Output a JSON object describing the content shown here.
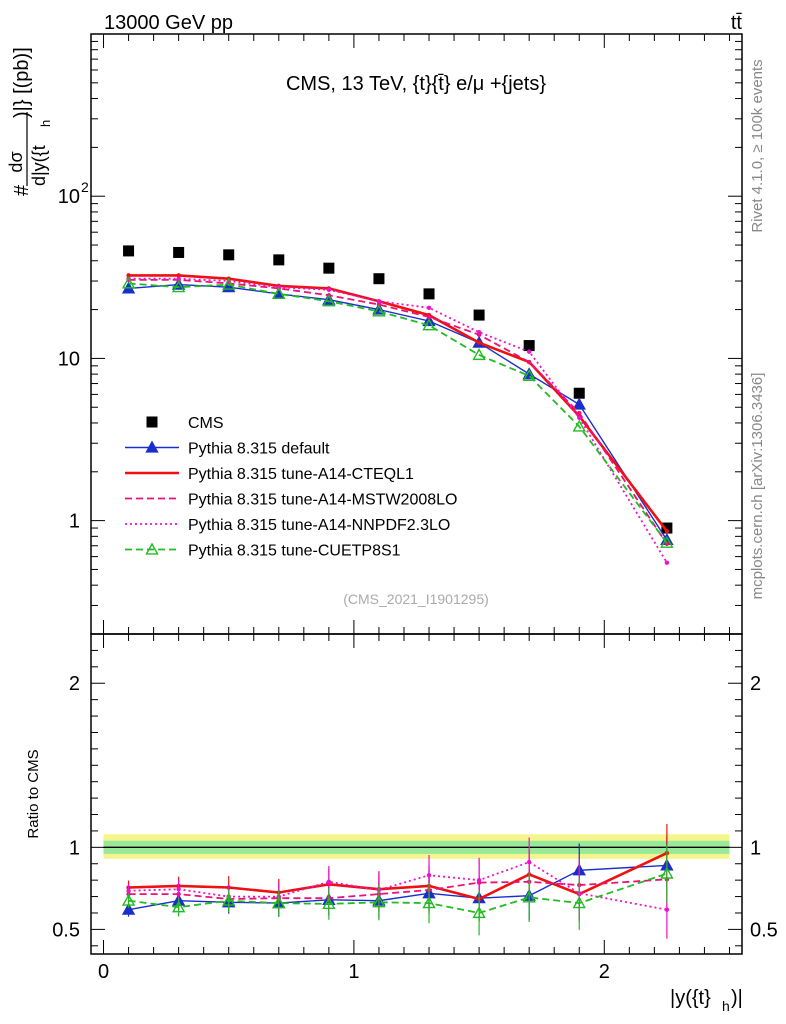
{
  "header": {
    "energy_label": "13000 GeV pp",
    "process_label": "tt̄"
  },
  "side_labels": {
    "rivet": "Rivet 4.1.0, ≥ 100k events",
    "mcplots": "mcplots.cern.ch [arXiv:1306.3436]"
  },
  "chart_data": [
    {
      "type": "line",
      "panel": "main",
      "title": "CMS, 13 TeV, {t}{t̄} e/μ +{jets}",
      "analysis_id": "(CMS_2021_I1901295)",
      "ylabel": "#dσ/d|y({t_h})|} [(pb)]",
      "ylabel_parts": {
        "hash": "#",
        "num": "dσ",
        "den": "d|y({t",
        "sub": "h",
        "tail": ")|} [(pb)]"
      },
      "yscale": "log",
      "ylim": [
        0.2,
        1000
      ],
      "xlim": [
        -0.05,
        2.55
      ],
      "ytick_labels": [
        {
          "value": 100,
          "base": "10",
          "exp": "2"
        },
        {
          "value": 10,
          "text": "10"
        },
        {
          "value": 1,
          "text": "1"
        }
      ],
      "legend_position": "lower-left",
      "x": [
        0.1,
        0.3,
        0.5,
        0.7,
        0.9,
        1.1,
        1.3,
        1.5,
        1.7,
        1.9,
        2.25
      ],
      "series": [
        {
          "name": "CMS",
          "color": "#000000",
          "marker": "square",
          "values": [
            46,
            45,
            43.5,
            40.5,
            36,
            31,
            25,
            18.5,
            12,
            6.1,
            0.9
          ]
        },
        {
          "name": "Pythia 8.315 default",
          "color": "#1a2ecc",
          "marker": "triangle",
          "line": "solid",
          "values": [
            27,
            28.5,
            27.5,
            25,
            23,
            20,
            17,
            12.5,
            8,
            5.2,
            0.76
          ]
        },
        {
          "name": "Pythia 8.315 tune-A14-CTEQL1",
          "color": "#ee1111",
          "marker": "none",
          "line": "solid",
          "values": [
            32.5,
            32.5,
            31,
            28,
            27,
            22.5,
            18.5,
            12.5,
            9.5,
            4.4,
            0.86
          ]
        },
        {
          "name": "Pythia 8.315 tune-A14-MSTW2008LO",
          "color": "#ee1177",
          "marker": "none",
          "line": "dashed",
          "values": [
            30.5,
            30.5,
            29,
            27,
            24.5,
            21.5,
            18,
            14,
            9.5,
            4.6,
            0.72
          ]
        },
        {
          "name": "Pythia 8.315 tune-A14-NNPDF2.3LO",
          "color": "#ee11cc",
          "marker": "none",
          "line": "dotted",
          "values": [
            31,
            31,
            30,
            27.5,
            26.5,
            22.5,
            20.5,
            14.5,
            11,
            4.3,
            0.55
          ]
        },
        {
          "name": "Pythia 8.315 tune-CUETP8S1",
          "color": "#22bb22",
          "marker": "triangle-open",
          "line": "dashed",
          "values": [
            29,
            27.5,
            28.5,
            25,
            22.5,
            19.5,
            16,
            10.5,
            7.8,
            3.8,
            0.73
          ]
        }
      ]
    },
    {
      "type": "line",
      "panel": "ratio",
      "ylabel": "Ratio to CMS",
      "ylim": [
        0.35,
        2.3
      ],
      "xlim": [
        -0.05,
        2.55
      ],
      "ytick_labels": [
        "0.5",
        "1",
        "2"
      ],
      "ytick_values": [
        0.5,
        1,
        2
      ],
      "xlabel": "|y({t}_h)|",
      "xlabel_parts": {
        "main": "|y({t}",
        "sub": "h",
        "tail": ")|"
      },
      "xtick_labels": [
        "0",
        "1",
        "2"
      ],
      "xtick_values": [
        0,
        1,
        2
      ],
      "band_inner": [
        0.96,
        1.04
      ],
      "band_outer": [
        0.93,
        1.08
      ],
      "x": [
        0.1,
        0.3,
        0.5,
        0.7,
        0.9,
        1.1,
        1.3,
        1.5,
        1.7,
        1.9,
        2.25
      ],
      "series": [
        {
          "name": "Pythia 8.315 default",
          "color": "#1a2ecc",
          "values": [
            0.62,
            0.675,
            0.665,
            0.66,
            0.68,
            0.675,
            0.72,
            0.69,
            0.705,
            0.86,
            0.89
          ]
        },
        {
          "name": "Pythia 8.315 tune-A14-CTEQL1",
          "color": "#ee1111",
          "values": [
            0.755,
            0.765,
            0.755,
            0.725,
            0.775,
            0.745,
            0.765,
            0.685,
            0.835,
            0.715,
            0.965
          ]
        },
        {
          "name": "Pythia 8.315 tune-A14-MSTW2008LO",
          "color": "#ee1177",
          "values": [
            0.715,
            0.715,
            0.685,
            0.69,
            0.69,
            0.715,
            0.74,
            0.785,
            0.79,
            0.77,
            0.805
          ]
        },
        {
          "name": "Pythia 8.315 tune-A14-NNPDF2.3LO",
          "color": "#ee11cc",
          "values": [
            0.735,
            0.745,
            0.7,
            0.7,
            0.79,
            0.74,
            0.83,
            0.8,
            0.91,
            0.72,
            0.62
          ]
        },
        {
          "name": "Pythia 8.315 tune-CUETP8S1",
          "color": "#22bb22",
          "values": [
            0.675,
            0.635,
            0.675,
            0.66,
            0.655,
            0.665,
            0.66,
            0.6,
            0.695,
            0.66,
            0.84
          ]
        }
      ]
    }
  ]
}
